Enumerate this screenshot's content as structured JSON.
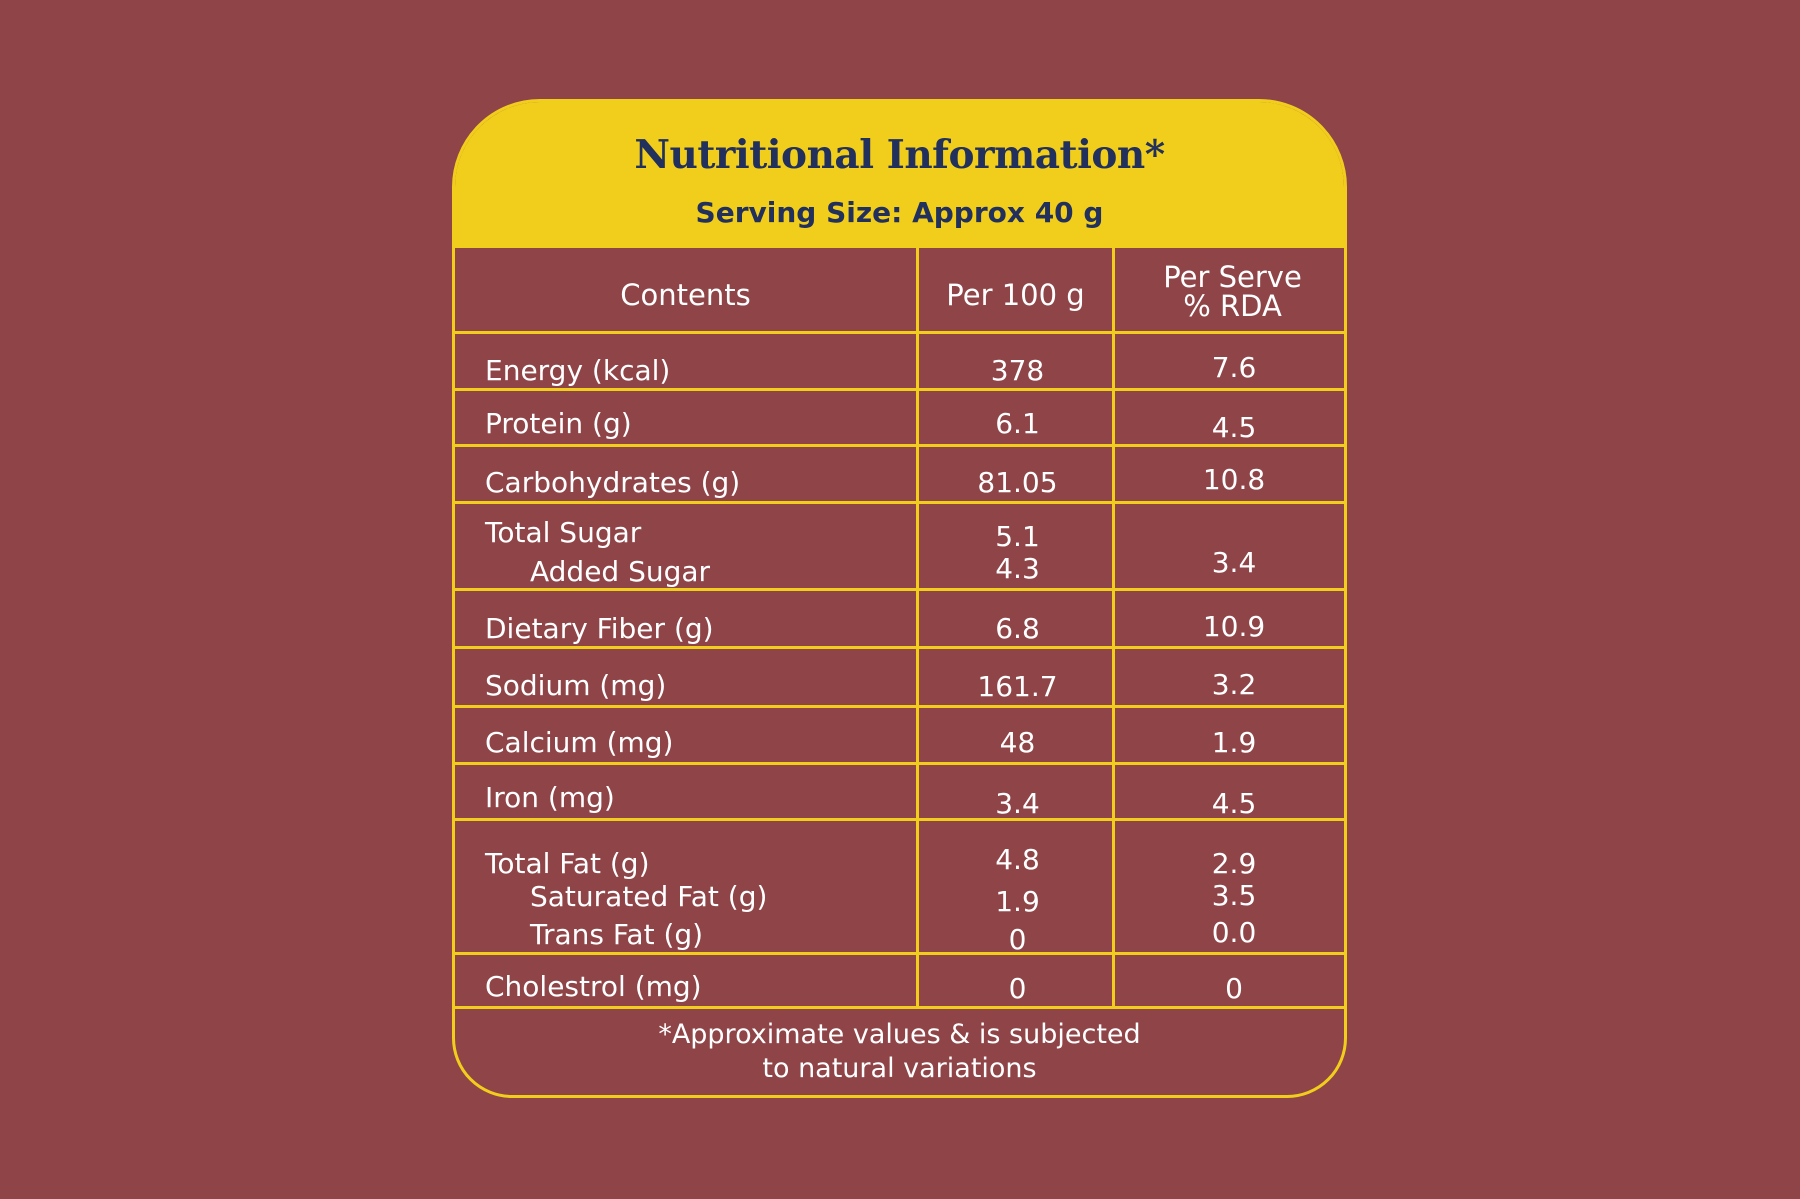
{
  "title": "Nutritional Information*",
  "serving": "Serving Size: Approx 40 g",
  "headers": {
    "contents": "Contents",
    "per100": "Per 100 g",
    "perServe1": "Per Serve",
    "perServe2": "% RDA"
  },
  "rows": [
    {
      "name": "Energy (kcal)",
      "per100": "378",
      "rda": "7.6"
    },
    {
      "name": "Protein (g)",
      "per100": "6.1",
      "rda": "4.5"
    },
    {
      "name": "Carbohydrates (g)",
      "per100": "81.05",
      "rda": "10.8"
    },
    {
      "name": "Total Sugar",
      "per100": "5.1",
      "sub_name": "Added Sugar",
      "sub_per100": "4.3",
      "sub_rda": "3.4"
    },
    {
      "name": "Dietary Fiber (g)",
      "per100": "6.8",
      "rda": "10.9"
    },
    {
      "name": "Sodium (mg)",
      "per100": "161.7",
      "rda": "3.2"
    },
    {
      "name": "Calcium (mg)",
      "per100": "48",
      "rda": "1.9"
    },
    {
      "name": "Iron (mg)",
      "per100": "3.4",
      "rda": "4.5"
    },
    {
      "name": "Total Fat (g)",
      "per100": "4.8",
      "rda": "2.9",
      "sub1_name": "Saturated Fat (g)",
      "sub1_per100": "1.9",
      "sub1_rda": "3.5",
      "sub2_name": "Trans Fat (g)",
      "sub2_per100": "0",
      "sub2_rda": "0.0"
    },
    {
      "name": "Cholestrol (mg)",
      "per100": "0",
      "rda": "0"
    }
  ],
  "footnote_line1": "*Approximate values & is subjected",
  "footnote_line2": "to natural variations",
  "colors": {
    "background": "#8f4448",
    "accent": "#f2ce1c",
    "title_text": "#21305c",
    "body_text": "#ffffff"
  }
}
